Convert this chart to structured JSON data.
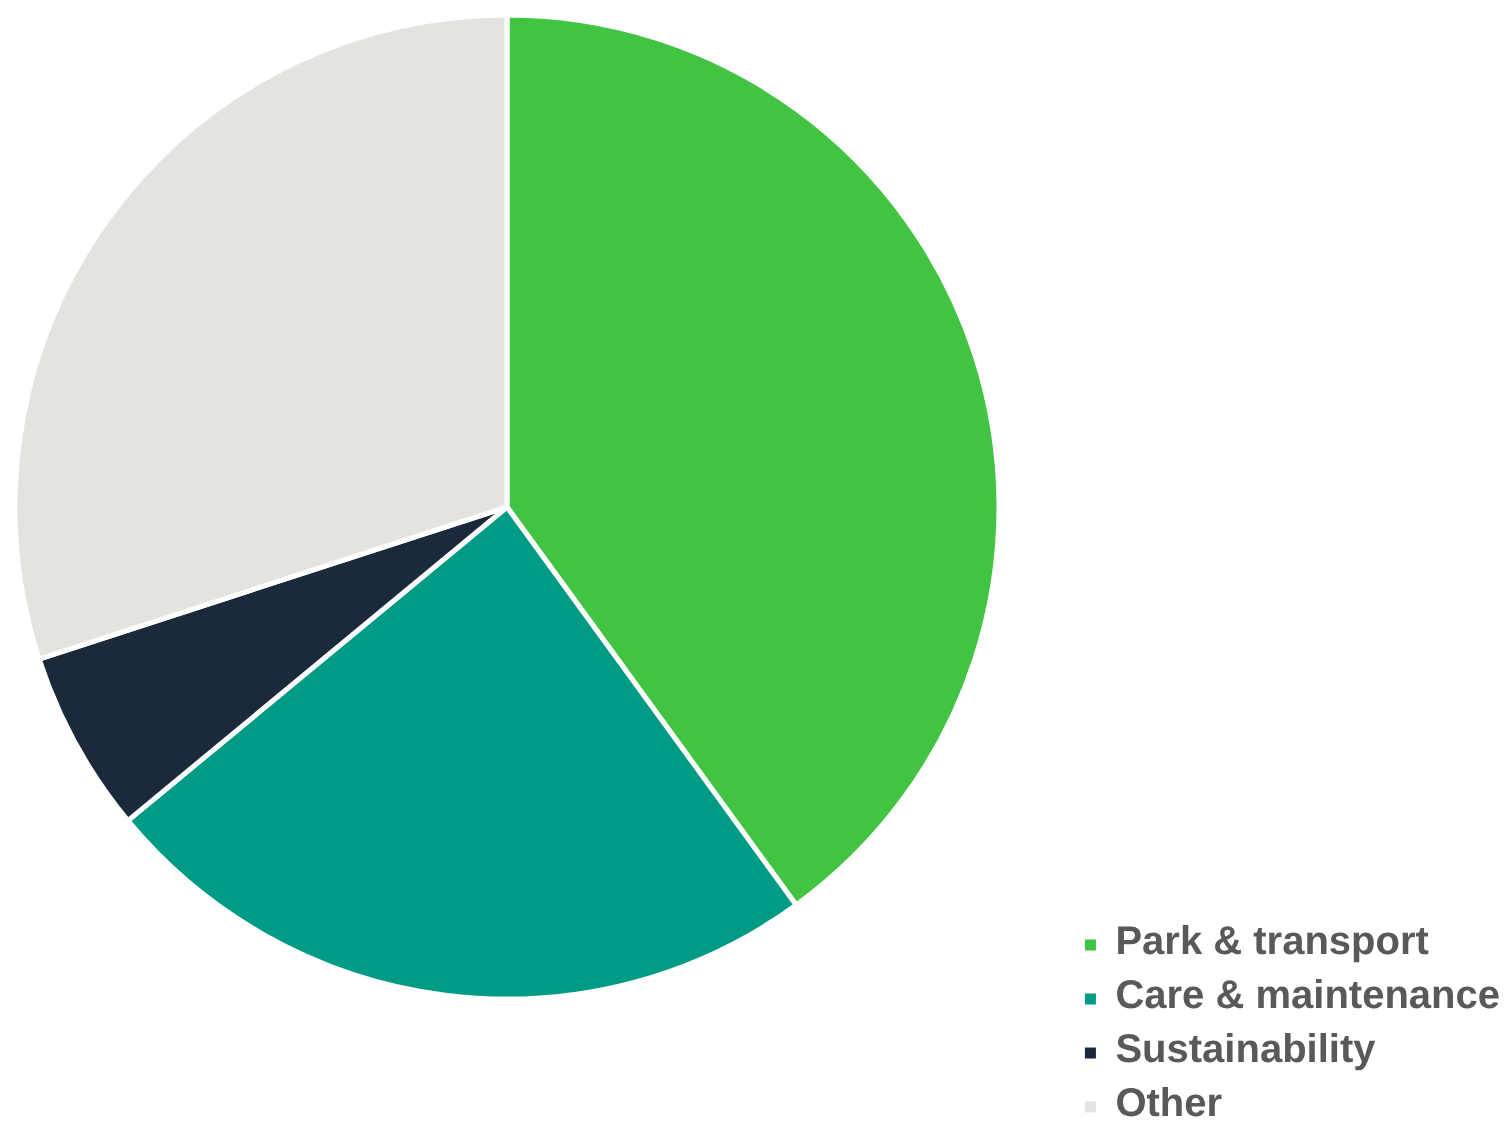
{
  "chart_data": {
    "type": "pie",
    "categories": [
      "Park & transport",
      "Care & maintenance",
      "Sustainability",
      "Other"
    ],
    "values": [
      40,
      24,
      6,
      30
    ],
    "colors": [
      "#41c441",
      "#009b85",
      "#1a2a3a",
      "#e5e3e0"
    ],
    "legend": "bottom right"
  }
}
